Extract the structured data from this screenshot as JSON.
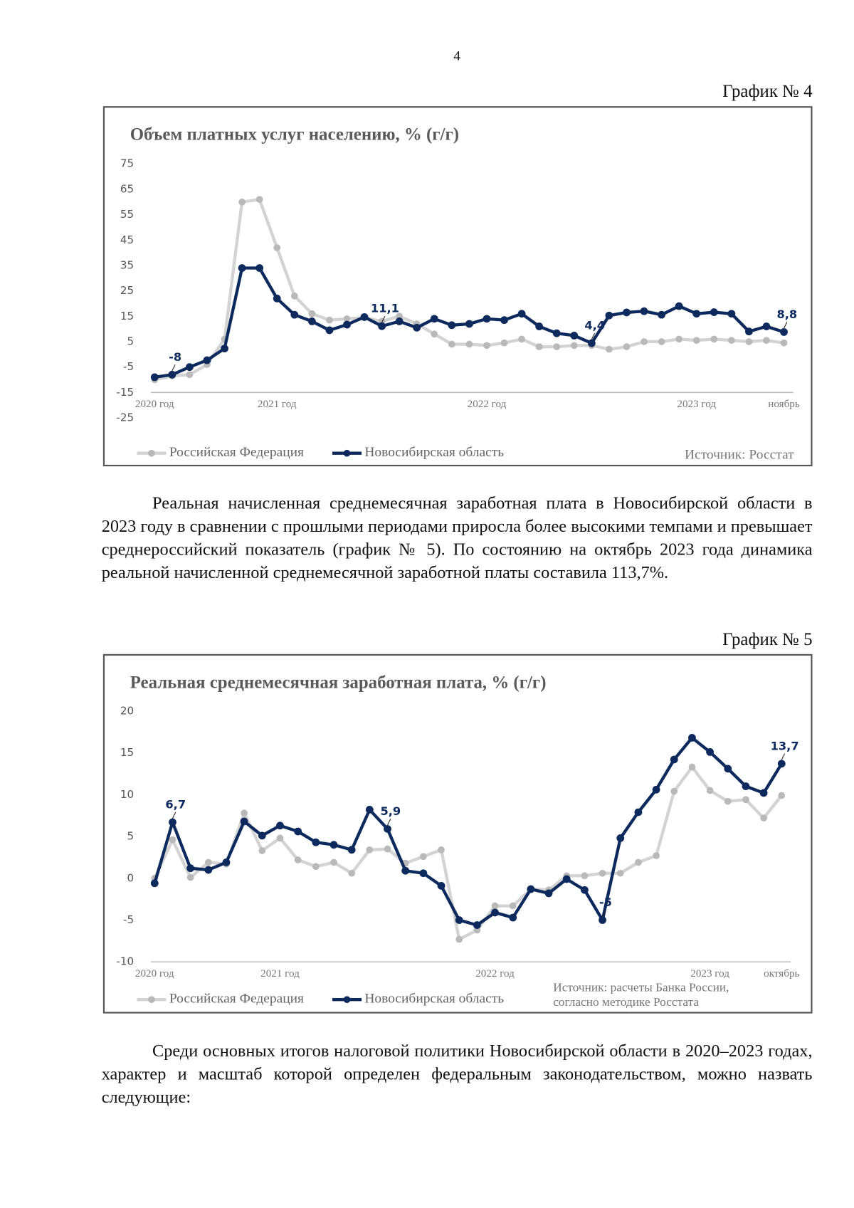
{
  "page_number": "4",
  "captions": [
    "График № 4",
    "График № 5"
  ],
  "paragraphs": [
    "Реальная начисленная среднемесячная заработная плата в Новосибирской области в 2023 году в сравнении с прошлыми периодами приросла более высокими темпами и превышает среднероссийский показатель (график № 5). По состоянию на октябрь 2023 года динамика реальной начисленной среднемесячной заработной платы составила 113,7%.",
    "Среди основных итогов налоговой политики Новосибирской области в 2020–2023 годах, характер и масштаб которой определен федеральным законодательством, можно назвать следующие:"
  ],
  "chart_data": [
    {
      "type": "line",
      "title": "Объем платных услуг населению, % (г/г)",
      "source": "Источник: Росстат",
      "categories": [
        "2020 год",
        null,
        null,
        null,
        null,
        null,
        null,
        "2021 год",
        null,
        null,
        null,
        null,
        null,
        null,
        null,
        null,
        null,
        null,
        null,
        "2022 год",
        null,
        null,
        null,
        null,
        null,
        null,
        null,
        null,
        null,
        null,
        null,
        "2023 год",
        null,
        null,
        null,
        null,
        "ноябрь"
      ],
      "ylim": [
        -15,
        75
      ],
      "yticks": [
        75,
        65,
        55,
        45,
        35,
        25,
        15,
        5,
        -5,
        -15,
        -25
      ],
      "series": [
        {
          "name": "Российская Федерация",
          "color": "#d3d3d3",
          "values": [
            -10,
            -8.5,
            -8,
            -4,
            6,
            60,
            61,
            42,
            23,
            16,
            13.5,
            14,
            14.5,
            13,
            15,
            12,
            8,
            4,
            4,
            3.5,
            4.5,
            6,
            3,
            3,
            3.5,
            3.5,
            2,
            3,
            5,
            5,
            6,
            5.5,
            6,
            5.5,
            5,
            5.5,
            4.5
          ]
        },
        {
          "name": "Новосибирская область",
          "color": "#0d2a5e",
          "values": [
            -9,
            -8,
            -5,
            -2.3,
            2.3,
            34,
            34,
            22,
            15.6,
            13,
            9.5,
            11.7,
            14.7,
            11.1,
            13,
            10.5,
            14,
            11.5,
            12,
            14,
            13.5,
            16,
            11,
            8.3,
            7.4,
            4.4,
            15.3,
            16.5,
            17,
            15.6,
            19,
            16,
            16.6,
            16,
            9,
            11,
            8.8
          ],
          "value_labels": [
            null,
            "-8",
            null,
            null,
            null,
            null,
            null,
            null,
            null,
            null,
            null,
            null,
            null,
            "11,1",
            null,
            null,
            null,
            null,
            null,
            null,
            null,
            null,
            null,
            null,
            null,
            "4,4",
            null,
            null,
            null,
            null,
            null,
            null,
            null,
            null,
            null,
            null,
            "8,8"
          ]
        }
      ]
    },
    {
      "type": "line",
      "title": "Реальная среднемесячная заработная плата, % (г/г)",
      "source": [
        "Источник: расчеты Банка России,",
        "согласно методике Росстата"
      ],
      "categories": [
        "2020 год",
        null,
        null,
        null,
        null,
        null,
        null,
        "2021 год",
        null,
        null,
        null,
        null,
        null,
        null,
        null,
        null,
        null,
        null,
        null,
        "2022 год",
        null,
        null,
        null,
        null,
        null,
        null,
        null,
        null,
        null,
        null,
        null,
        "2023 год",
        null,
        null,
        null,
        "октябрь"
      ],
      "ylim": [
        -10,
        20
      ],
      "yticks": [
        20,
        15,
        10,
        5,
        0,
        -5,
        -10
      ],
      "series": [
        {
          "name": "Российская Федерация",
          "color": "#d3d3d3",
          "values": [
            0,
            4.6,
            0.1,
            1.9,
            1.7,
            7.8,
            3.3,
            4.8,
            2.2,
            1.4,
            1.9,
            0.6,
            3.4,
            3.5,
            1.8,
            2.6,
            3.4,
            -7.3,
            -6.2,
            -3.3,
            -3.3,
            -1.3,
            -1.4,
            0.3,
            0.3,
            0.6,
            0.6,
            1.9,
            2.7,
            10.4,
            13.3,
            10.5,
            9.2,
            9.4,
            7.2,
            9.9
          ]
        },
        {
          "name": "Новосибирская область",
          "color": "#0d2a5e",
          "values": [
            -0.6,
            6.7,
            1.2,
            1,
            1.9,
            6.8,
            5.1,
            6.3,
            5.6,
            4.3,
            4,
            3.4,
            8.2,
            5.9,
            0.9,
            0.6,
            -0.9,
            -5,
            -5.6,
            -4.1,
            -4.7,
            -1.3,
            -1.8,
            -0.1,
            -1.4,
            -5,
            4.8,
            7.9,
            10.6,
            14.2,
            16.8,
            15.1,
            13.1,
            11,
            10.2,
            13.7
          ],
          "value_labels": [
            null,
            "6,7",
            null,
            null,
            null,
            null,
            null,
            null,
            null,
            null,
            null,
            null,
            null,
            "5,9",
            null,
            null,
            null,
            null,
            null,
            null,
            null,
            null,
            null,
            null,
            null,
            "-5",
            null,
            null,
            null,
            null,
            null,
            null,
            null,
            null,
            null,
            "13,7"
          ]
        }
      ]
    }
  ]
}
